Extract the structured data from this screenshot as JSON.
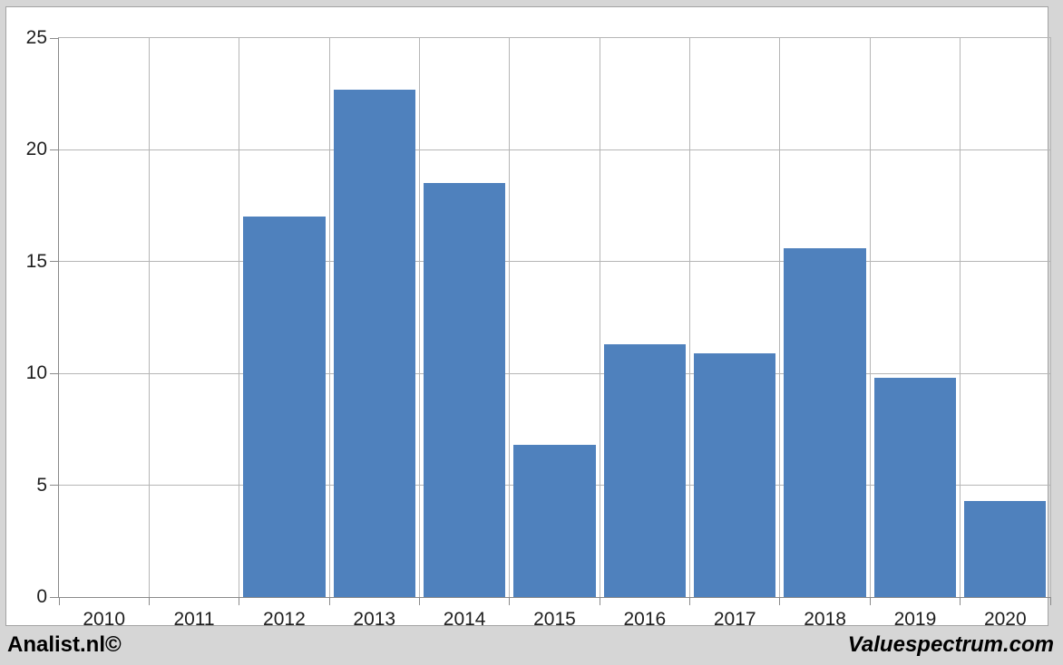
{
  "footer": {
    "left": "Analist.nl©",
    "right": "Valuespectrum.com"
  },
  "colors": {
    "bar": "#4F81BD",
    "panel_background": "#ffffff",
    "outer_background": "#d6d6d6",
    "gridline": "#b6b6b6",
    "axis": "#8a8a8a",
    "label_text": "#1f1f1f",
    "footer_text": "#000000"
  },
  "chart_data": {
    "type": "bar",
    "title": "",
    "xlabel": "",
    "ylabel": "",
    "categories": [
      "2010",
      "2011",
      "2012",
      "2013",
      "2014",
      "2015",
      "2016",
      "2017",
      "2018",
      "2019",
      "2020"
    ],
    "values": [
      null,
      null,
      17.0,
      22.7,
      18.5,
      6.8,
      11.3,
      10.9,
      15.6,
      9.8,
      4.3
    ],
    "ylim": [
      0,
      25
    ],
    "ytick_step": 5,
    "ytick_labels": [
      "0",
      "5",
      "10",
      "15",
      "20",
      "25"
    ],
    "grid": true,
    "legend": "none",
    "bar_color": "#4F81BD"
  }
}
